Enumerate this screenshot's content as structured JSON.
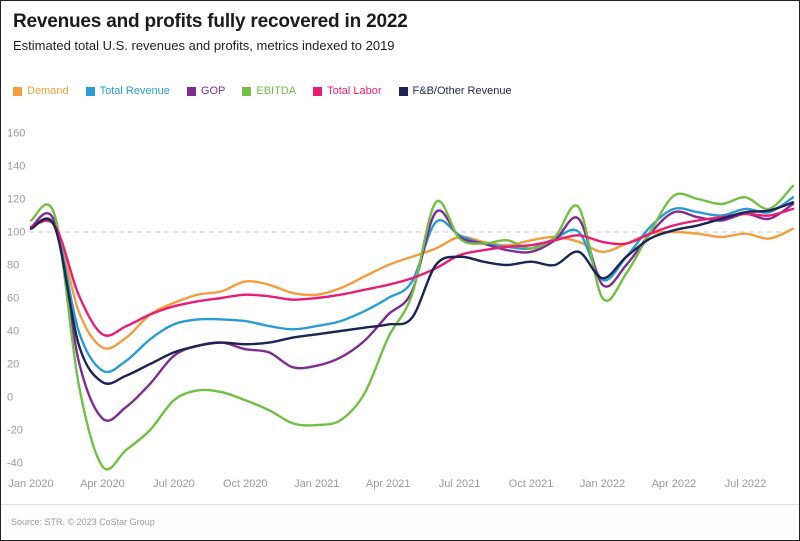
{
  "header": {
    "title": "Revenues and profits fully recovered in 2022",
    "subtitle": "Estimated total U.S. revenues and profits, metrics indexed to 2019"
  },
  "footer": {
    "source": "Source: STR. © 2023 CoStar Group"
  },
  "chart_data": {
    "type": "line",
    "title": "Revenues and profits fully recovered in 2022",
    "subtitle": "Estimated total U.S. revenues and profits, metrics indexed to 2019",
    "x": [
      "2020-01",
      "2020-02",
      "2020-03",
      "2020-04",
      "2020-05",
      "2020-06",
      "2020-07",
      "2020-08",
      "2020-09",
      "2020-10",
      "2020-11",
      "2020-12",
      "2021-01",
      "2021-02",
      "2021-03",
      "2021-04",
      "2021-05",
      "2021-06",
      "2021-07",
      "2021-08",
      "2021-09",
      "2021-10",
      "2021-11",
      "2021-12",
      "2022-01",
      "2022-02",
      "2022-03",
      "2022-04",
      "2022-05",
      "2022-06",
      "2022-07",
      "2022-08",
      "2022-09"
    ],
    "x_tick_labels": [
      "Jan 2020",
      "Apr 2020",
      "Jul 2020",
      "Oct 2020",
      "Jan 2021",
      "Apr 2021",
      "Jul 2021",
      "Oct 2021",
      "Jan 2022",
      "Apr 2022",
      "Jul 2022"
    ],
    "x_tick_indices": [
      0,
      3,
      6,
      9,
      12,
      15,
      18,
      21,
      24,
      27,
      30
    ],
    "ylim": [
      -40,
      160
    ],
    "yticks": [
      160,
      140,
      120,
      100,
      80,
      60,
      40,
      20,
      0,
      -20,
      -40
    ],
    "reference_line": 100,
    "grid": "reference-line-only",
    "legend_position": "top-left",
    "axis_label_color": "#9a9a9a",
    "reference_line_color": "#c9c9c9",
    "series": [
      {
        "name": "Demand",
        "color": "#F49D3F",
        "values": [
          103,
          105,
          52,
          30,
          36,
          50,
          57,
          62,
          64,
          70,
          68,
          63,
          62,
          66,
          73,
          80,
          85,
          90,
          97,
          94,
          92,
          95,
          97,
          94,
          88,
          93,
          99,
          100,
          99,
          97,
          99,
          96,
          102
        ]
      },
      {
        "name": "Total Revenue",
        "color": "#299CD6",
        "values": [
          102,
          104,
          40,
          16,
          22,
          35,
          44,
          47,
          47,
          46,
          43,
          41,
          43,
          46,
          52,
          60,
          70,
          106,
          98,
          93,
          91,
          90,
          96,
          100,
          71,
          85,
          103,
          114,
          112,
          110,
          114,
          112,
          121
        ]
      },
      {
        "name": "GOP",
        "color": "#7F2C91",
        "values": [
          103,
          106,
          22,
          -13,
          -6,
          8,
          25,
          31,
          33,
          29,
          27,
          18,
          19,
          24,
          34,
          50,
          64,
          112,
          97,
          93,
          89,
          88,
          95,
          108,
          68,
          80,
          99,
          112,
          109,
          107,
          111,
          108,
          117
        ]
      },
      {
        "name": "EBITDA",
        "color": "#71BF44",
        "values": [
          107,
          110,
          8,
          -42,
          -32,
          -20,
          -2,
          4,
          3,
          -2,
          -8,
          -16,
          -17,
          -14,
          2,
          36,
          62,
          118,
          96,
          93,
          95,
          90,
          97,
          115,
          60,
          75,
          100,
          122,
          120,
          117,
          121,
          114,
          128
        ]
      },
      {
        "name": "Total Labor",
        "color": "#E81D75",
        "values": [
          103,
          104,
          62,
          38,
          43,
          50,
          55,
          58,
          60,
          62,
          61,
          59,
          60,
          62,
          65,
          68,
          72,
          78,
          86,
          89,
          91,
          92,
          95,
          98,
          94,
          93,
          99,
          104,
          107,
          109,
          111,
          110,
          114
        ]
      },
      {
        "name": "F&B/Other Revenue",
        "color": "#1C2454",
        "values": [
          102,
          103,
          32,
          9,
          13,
          20,
          27,
          31,
          33,
          32,
          33,
          36,
          38,
          40,
          42,
          44,
          48,
          80,
          85,
          82,
          80,
          82,
          80,
          88,
          72,
          85,
          96,
          101,
          104,
          108,
          112,
          113,
          118
        ]
      }
    ]
  }
}
